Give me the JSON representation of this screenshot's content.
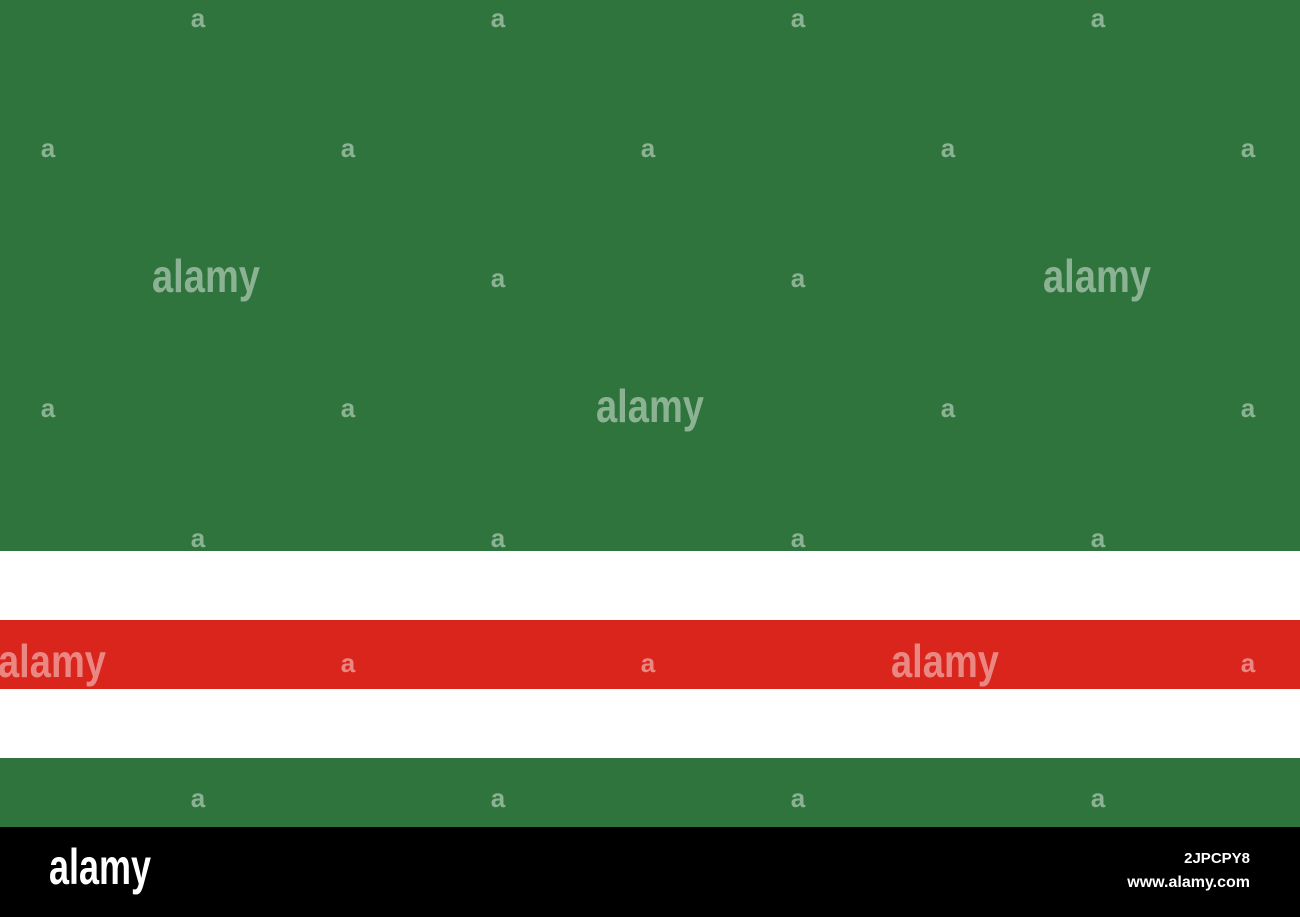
{
  "watermarks": [
    "a",
    "a",
    "a",
    "a",
    "a",
    "a",
    "a",
    "a",
    "a",
    "alamy",
    "a",
    "a",
    "alamy",
    "a",
    "a",
    "alamy",
    "a",
    "a",
    "a",
    "a",
    "a",
    "a",
    "alamy",
    "a",
    "a",
    "alamy",
    "a",
    "a",
    "a",
    "a",
    "a"
  ],
  "footer": {
    "logo": "alamy",
    "image_id": "2JPCPY8",
    "url": "www.alamy.com"
  }
}
